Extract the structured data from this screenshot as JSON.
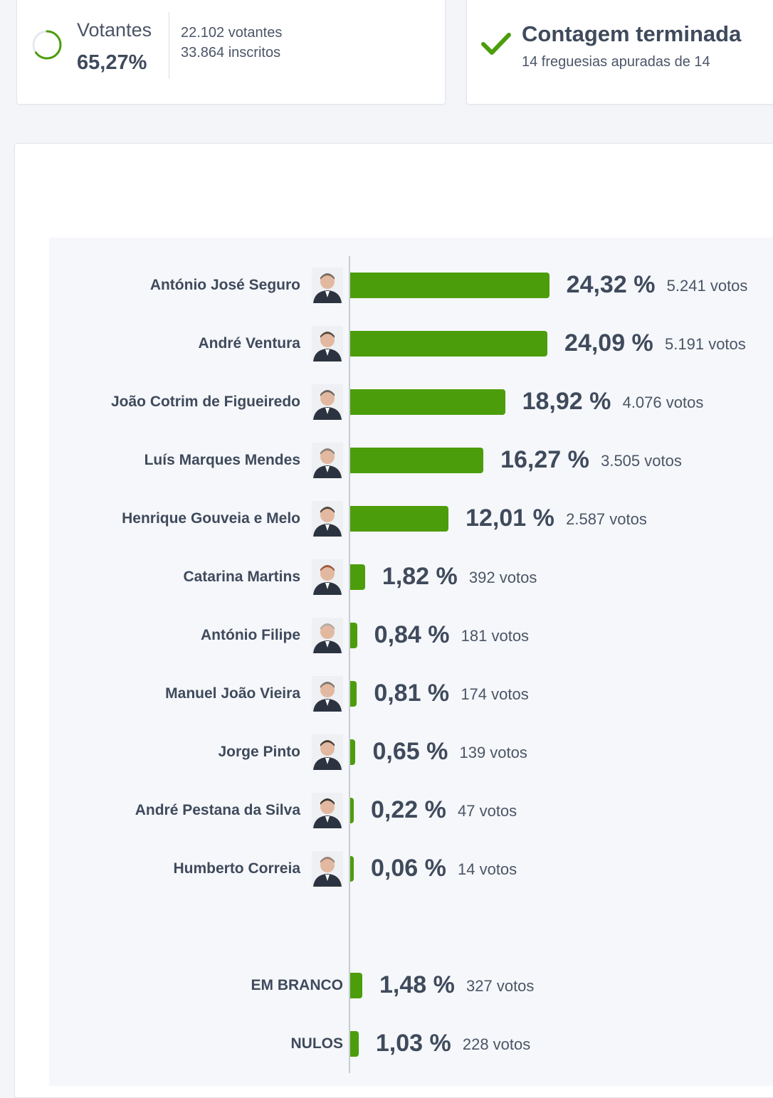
{
  "turnout": {
    "label": "Votantes",
    "percent": "65,27%",
    "percent_value": 65.27,
    "voters": "22.102 votantes",
    "registered": "33.864 inscritos",
    "ring_color": "#4c9d0b"
  },
  "status": {
    "title": "Contagem terminada",
    "subtitle": "14 freguesias apuradas de 14",
    "check_color": "#4c9d0b"
  },
  "chart_data": {
    "type": "bar",
    "orientation": "horizontal",
    "bar_color": "#4c9d0b",
    "categories": [
      "António José Seguro",
      "André Ventura",
      "João Cotrim de Figueiredo",
      "Luís Marques Mendes",
      "Henrique Gouveia e Melo",
      "Catarina Martins",
      "António Filipe",
      "Manuel João Vieira",
      "Jorge Pinto",
      "André Pestana da Silva",
      "Humberto Correia",
      "EM BRANCO",
      "NULOS"
    ],
    "values": [
      24.32,
      24.09,
      18.92,
      16.27,
      12.01,
      1.82,
      0.84,
      0.81,
      0.65,
      0.22,
      0.06,
      1.48,
      1.03
    ],
    "pct_labels": [
      "24,32 %",
      "24,09 %",
      "18,92 %",
      "16,27 %",
      "12,01 %",
      "1,82 %",
      "0,84 %",
      "0,81 %",
      "0,65 %",
      "0,22 %",
      "0,06 %",
      "1,48 %",
      "1,03 %"
    ],
    "votes_labels": [
      "5.241 votos",
      "5.191 votos",
      "4.076 votos",
      "3.505 votos",
      "2.587 votos",
      "392 votos",
      "181 votos",
      "174 votos",
      "139 votos",
      "47 votos",
      "14 votos",
      "327 votos",
      "228 votos"
    ],
    "has_photo": [
      true,
      true,
      true,
      true,
      true,
      true,
      true,
      true,
      true,
      true,
      true,
      false,
      false
    ]
  }
}
